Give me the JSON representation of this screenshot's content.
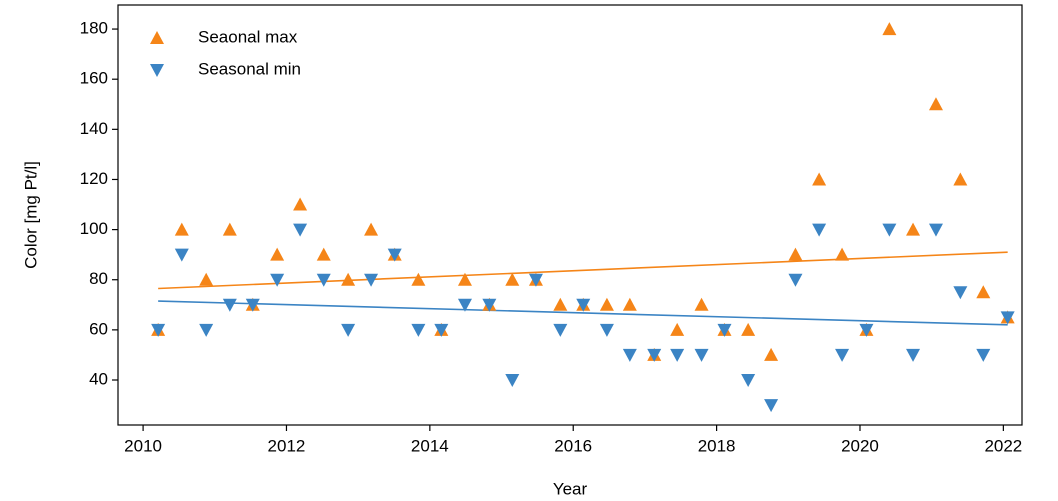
{
  "chart_data": {
    "type": "scatter",
    "xlabel": "Year",
    "ylabel": "Color [mg Pt/l]",
    "x": [
      2010.21,
      2010.54,
      2010.88,
      2011.21,
      2011.53,
      2011.87,
      2012.19,
      2012.52,
      2012.86,
      2013.18,
      2013.51,
      2013.84,
      2014.16,
      2014.49,
      2014.83,
      2015.15,
      2015.48,
      2015.82,
      2016.14,
      2016.47,
      2016.79,
      2017.13,
      2017.45,
      2017.79,
      2018.11,
      2018.44,
      2018.76,
      2019.1,
      2019.43,
      2019.75,
      2020.09,
      2020.41,
      2020.74,
      2021.06,
      2021.4,
      2021.72,
      2022.06
    ],
    "series": [
      {
        "name": "Seaonal max",
        "color": "#f58518",
        "marker": "triangle-up",
        "values": [
          60,
          100,
          80,
          100,
          70,
          90,
          110,
          90,
          80,
          100,
          90,
          80,
          60,
          80,
          70,
          80,
          80,
          70,
          70,
          70,
          70,
          50,
          60,
          70,
          60,
          60,
          50,
          90,
          120,
          90,
          60,
          180,
          100,
          150,
          120,
          75,
          65
        ],
        "trend_values": [
          76.5,
          91
        ]
      },
      {
        "name": "Seasonal min",
        "color": "#3b84c4",
        "marker": "triangle-down",
        "values": [
          60,
          90,
          60,
          70,
          70,
          80,
          100,
          80,
          60,
          80,
          90,
          60,
          60,
          70,
          70,
          40,
          80,
          60,
          70,
          60,
          50,
          50,
          50,
          50,
          60,
          40,
          30,
          80,
          100,
          50,
          60,
          100,
          50,
          100,
          75,
          50,
          65
        ],
        "trend_values": [
          71.5,
          62
        ]
      }
    ],
    "trend_x": [
      2010.21,
      2022.06
    ],
    "xlim": [
      2009.65,
      2022.26
    ],
    "ylim": [
      22.05,
      189.6
    ],
    "xticks": [
      2010,
      2012,
      2014,
      2016,
      2018,
      2020,
      2022
    ],
    "yticks": [
      40,
      60,
      80,
      100,
      120,
      140,
      160,
      180
    ],
    "grid": false,
    "legend": "upper left"
  }
}
